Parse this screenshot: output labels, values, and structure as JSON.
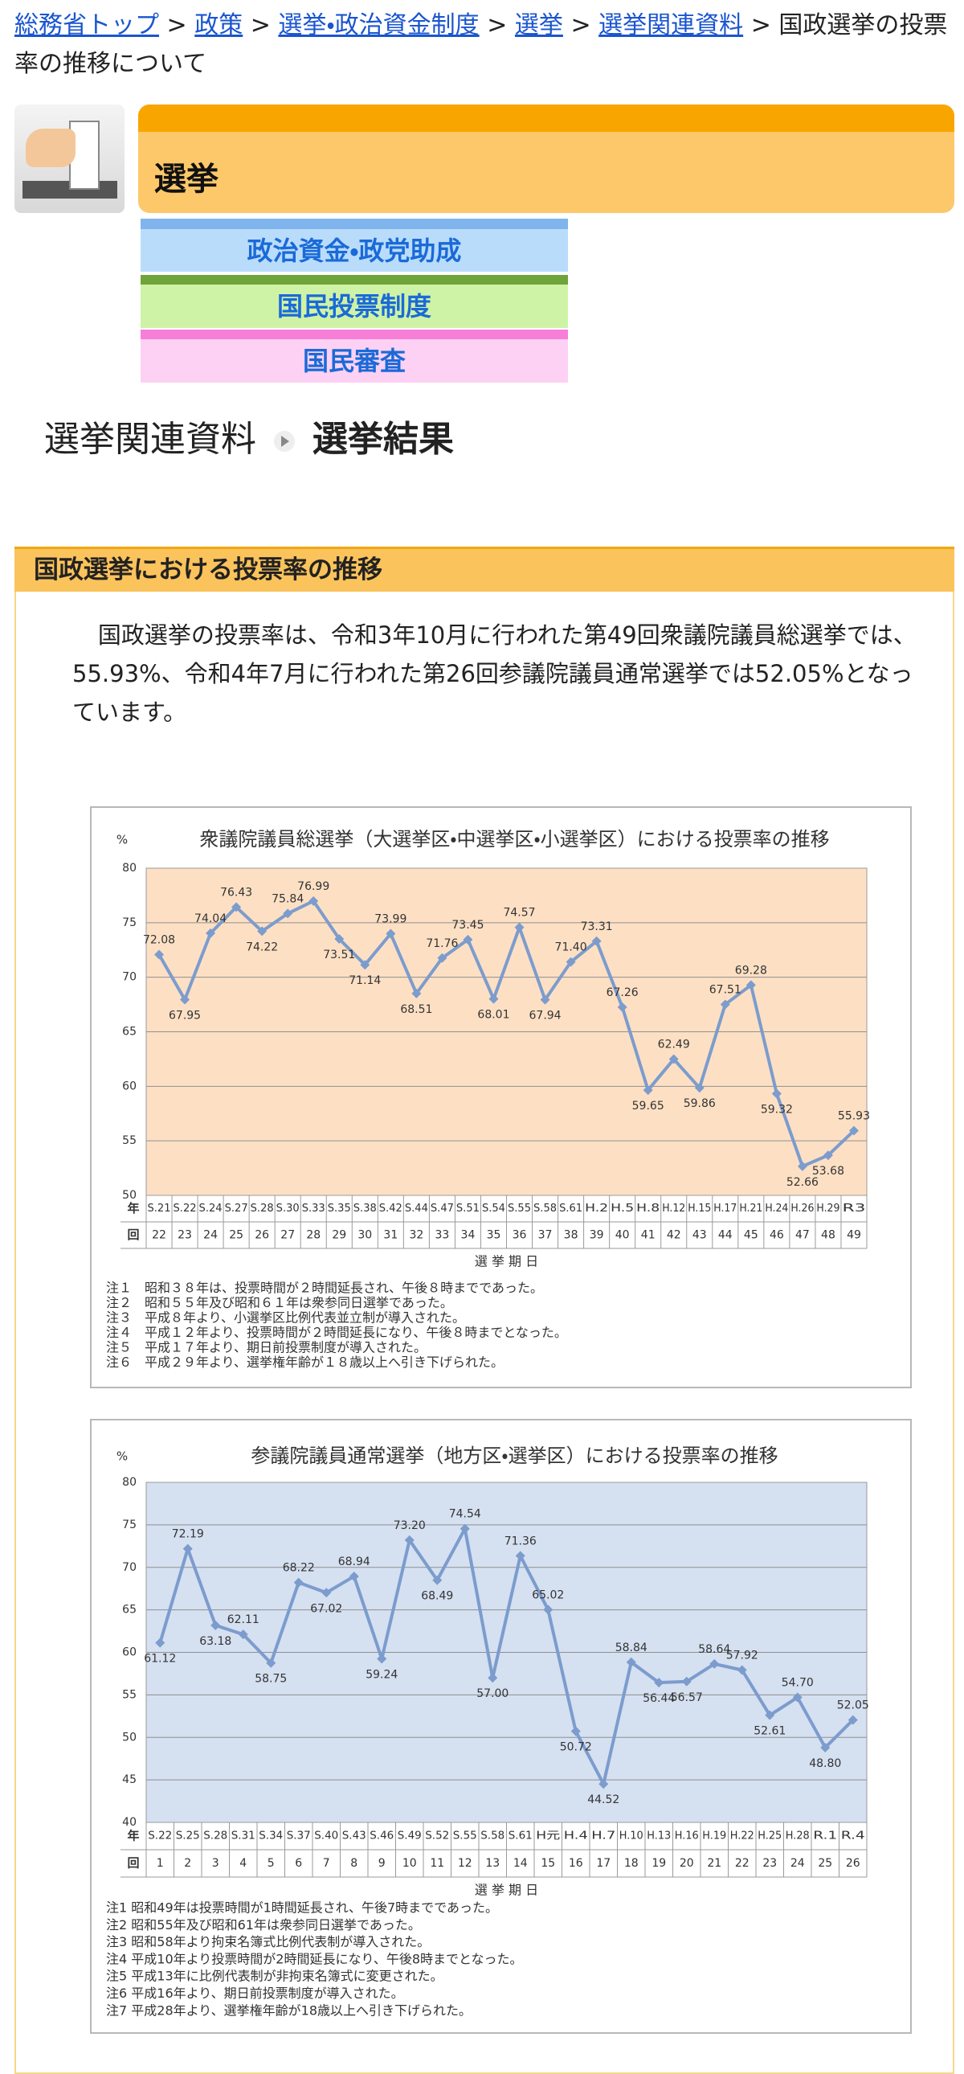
{
  "breadcrumb": {
    "links": [
      "総務省トップ",
      "政策",
      "選挙・政治資金制度",
      "選挙",
      "選挙関連資料"
    ],
    "separator": ">",
    "current": "国政選挙の投票率の推移について"
  },
  "header": {
    "title": "選挙"
  },
  "nav": [
    "政治資金・政党助成",
    "国民投票制度",
    "国民審査"
  ],
  "subheading": {
    "parent": "選挙関連資料",
    "current": "選挙結果"
  },
  "section": {
    "title": "国政選挙における投票率の推移",
    "text": "国政選挙の投票率は、令和3年10月に行われた第49回衆議院議員総選挙では、55.93%、令和4年7月に行われた第26回参議院議員通常選挙では52.05%となっています。"
  },
  "chart_data": [
    {
      "type": "line",
      "title": "衆議院議員総選挙（大選挙区・中選挙区・小選挙区）における投票率の推移",
      "ylabel": "%",
      "xlabel": "選 挙 期 日",
      "row_labels": [
        "年",
        "回"
      ],
      "categories": [
        "S.21",
        "S.22",
        "S.24",
        "S.27",
        "S.28",
        "S.30",
        "S.33",
        "S.35",
        "S.38",
        "S.42",
        "S.44",
        "S.47",
        "S.51",
        "S.54",
        "S.55",
        "S.58",
        "S.61",
        "H.2",
        "H.5",
        "H.8",
        "H.12",
        "H.15",
        "H.17",
        "H.21",
        "H.24",
        "H.26",
        "H.29",
        "R3"
      ],
      "election_numbers": [
        22,
        23,
        24,
        25,
        26,
        27,
        28,
        29,
        30,
        31,
        32,
        33,
        34,
        35,
        36,
        37,
        38,
        39,
        40,
        41,
        42,
        43,
        44,
        45,
        46,
        47,
        48,
        49
      ],
      "series": [
        {
          "color": "#7c9ccd",
          "values": [
            72.08,
            67.95,
            74.04,
            76.43,
            74.22,
            75.84,
            76.99,
            73.51,
            71.14,
            73.99,
            68.51,
            71.76,
            73.45,
            68.01,
            74.57,
            67.94,
            71.4,
            73.31,
            67.26,
            59.65,
            62.49,
            59.86,
            67.51,
            69.28,
            59.32,
            52.66,
            53.68,
            55.93
          ],
          "value_labels": [
            "72.08",
            "67.95",
            "74.04",
            "76.43",
            "74.22",
            "75.84",
            "76.99",
            "73.51",
            "71.14",
            "73.99",
            "68.51",
            "71.76",
            "73.45",
            "68.01",
            "74.57",
            "67.94",
            "71.40",
            "73.31",
            "67.26",
            "59.65",
            "62.49",
            "59.86",
            "67.51",
            "69.28",
            "59.32",
            "52.66",
            "53.68",
            "55.93"
          ]
        }
      ],
      "ylim": [
        50,
        80
      ],
      "yticks": [
        50,
        55,
        60,
        65,
        70,
        75,
        80
      ],
      "grid": true,
      "plot_color": "#fde0c4",
      "notes": [
        "注１　昭和３８年は、投票時間が２時間延長され、午後８時までであった。",
        "注２　昭和５５年及び昭和６１年は衆参同日選挙であった。",
        "注３　平成８年より、小選挙区比例代表並立制が導入された。",
        "注４　平成１２年より、投票時間が２時間延長になり、午後８時までとなった。",
        "注５　平成１７年より、期日前投票制度が導入された。",
        "注６　平成２９年より、選挙権年齢が１８歳以上へ引き下げられた。"
      ]
    },
    {
      "type": "line",
      "title": "参議院議員通常選挙（地方区・選挙区）における投票率の推移",
      "ylabel": "%",
      "xlabel": "選 挙 期 日",
      "row_labels": [
        "年",
        "回"
      ],
      "categories": [
        "S.22",
        "S.25",
        "S.28",
        "S.31",
        "S.34",
        "S.37",
        "S.40",
        "S.43",
        "S.46",
        "S.49",
        "S.52",
        "S.55",
        "S.58",
        "S.61",
        "H元",
        "H.4",
        "H.7",
        "H.10",
        "H.13",
        "H.16",
        "H.19",
        "H.22",
        "H.25",
        "H.28",
        "R.1",
        "R.4"
      ],
      "election_numbers": [
        1,
        2,
        3,
        4,
        5,
        6,
        7,
        8,
        9,
        10,
        11,
        12,
        13,
        14,
        15,
        16,
        17,
        18,
        19,
        20,
        21,
        22,
        23,
        24,
        25,
        26
      ],
      "series": [
        {
          "color": "#7c9ccd",
          "values": [
            61.12,
            72.19,
            63.18,
            62.11,
            58.75,
            68.22,
            67.02,
            68.94,
            59.24,
            73.2,
            68.49,
            74.54,
            57,
            71.36,
            65.02,
            50.72,
            44.52,
            58.84,
            56.44,
            56.57,
            58.64,
            57.92,
            52.61,
            54.7,
            48.8,
            52.05
          ],
          "value_labels": [
            "61.12",
            "72.19",
            "63.18",
            "62.11",
            "58.75",
            "68.22",
            "67.02",
            "68.94",
            "59.24",
            "73.20",
            "68.49",
            "74.54",
            "57.00",
            "71.36",
            "65.02",
            "50.72",
            "44.52",
            "58.84",
            "56.44",
            "56.57",
            "58.64",
            "57.92",
            "52.61",
            "54.70",
            "48.80",
            "52.05"
          ]
        }
      ],
      "ylim": [
        40,
        80
      ],
      "yticks": [
        40,
        45,
        50,
        55,
        60,
        65,
        70,
        75,
        80
      ],
      "grid": true,
      "plot_color": "#d5e0f1",
      "notes": [
        "注1  昭和49年は投票時間が1時間延長され、午後7時までであった。",
        "注2  昭和55年及び昭和61年は衆参同日選挙であった。",
        "注3  昭和58年より拘束名簿式比例代表制が導入された。",
        "注4  平成10年より投票時間が2時間延長になり、午後8時までとなった。",
        "注5  平成13年に比例代表制が非拘束名簿式に変更された。",
        "注6  平成16年より、期日前投票制度が導入された。",
        "注7  平成28年より、選挙権年齢が18歳以上へ引き下げられた。"
      ]
    }
  ]
}
